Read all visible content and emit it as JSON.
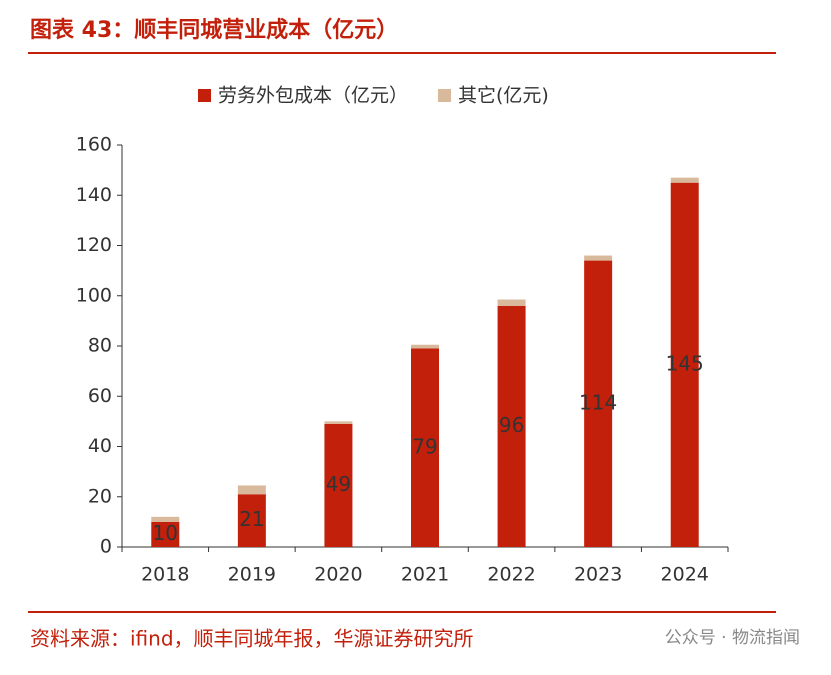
{
  "chart_data": {
    "type": "stacked_bar",
    "title": "图表 43：顺丰同城营业成本（亿元）",
    "source": "资料来源：ifind，顺丰同城年报，华源证券研究所",
    "watermark": "公众号 · 物流指闻",
    "categories": [
      "2018",
      "2019",
      "2020",
      "2021",
      "2022",
      "2023",
      "2024"
    ],
    "series": [
      {
        "name": "劳务外包成本（亿元）",
        "color": "#c3200b",
        "values": [
          10,
          21,
          49,
          79,
          96,
          114,
          145
        ]
      },
      {
        "name": "其它(亿元)",
        "color": "#d9b99b",
        "values": [
          2,
          3.5,
          1,
          1.5,
          2.5,
          2,
          2
        ]
      }
    ],
    "data_labels_series": 0,
    "ylim": [
      0,
      160
    ],
    "yticks": [
      0,
      20,
      40,
      60,
      80,
      100,
      120,
      140,
      160
    ]
  }
}
